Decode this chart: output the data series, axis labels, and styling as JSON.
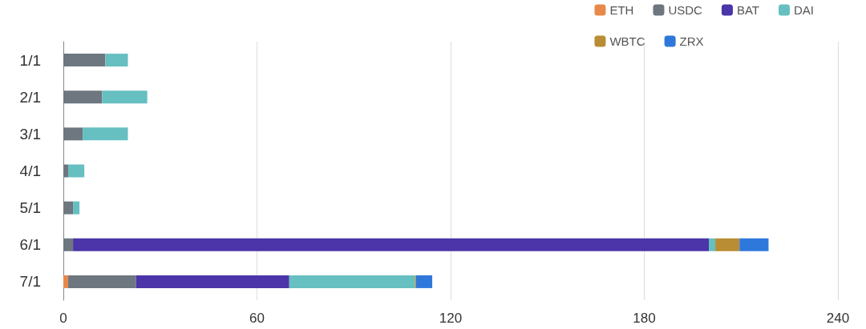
{
  "chart_data": {
    "type": "bar",
    "orientation": "horizontal",
    "stacked": true,
    "categories": [
      "1/1",
      "2/1",
      "3/1",
      "4/1",
      "5/1",
      "6/1",
      "7/1"
    ],
    "series": [
      {
        "name": "ETH",
        "color": "#e8894a",
        "values": [
          0,
          0,
          0,
          0,
          0,
          0,
          1.5
        ]
      },
      {
        "name": "USDC",
        "color": "#6e7780",
        "values": [
          13,
          12,
          6,
          1.5,
          3,
          3,
          21
        ]
      },
      {
        "name": "BAT",
        "color": "#4b35a8",
        "values": [
          0,
          0,
          0,
          0,
          0,
          197,
          47.5
        ]
      },
      {
        "name": "DAI",
        "color": "#66bfc0",
        "values": [
          7,
          14,
          14,
          5,
          2,
          2,
          39
        ]
      },
      {
        "name": "WBTC",
        "color": "#b98d33",
        "values": [
          0,
          0,
          0,
          0,
          0,
          7.5,
          0.3
        ]
      },
      {
        "name": "ZRX",
        "color": "#2f78db",
        "values": [
          0,
          0,
          0,
          0,
          0,
          9,
          5
        ]
      }
    ],
    "xlim": [
      0,
      240
    ],
    "xticks": [
      0,
      60,
      120,
      180,
      240
    ],
    "grid": "x",
    "legend": "top right"
  }
}
